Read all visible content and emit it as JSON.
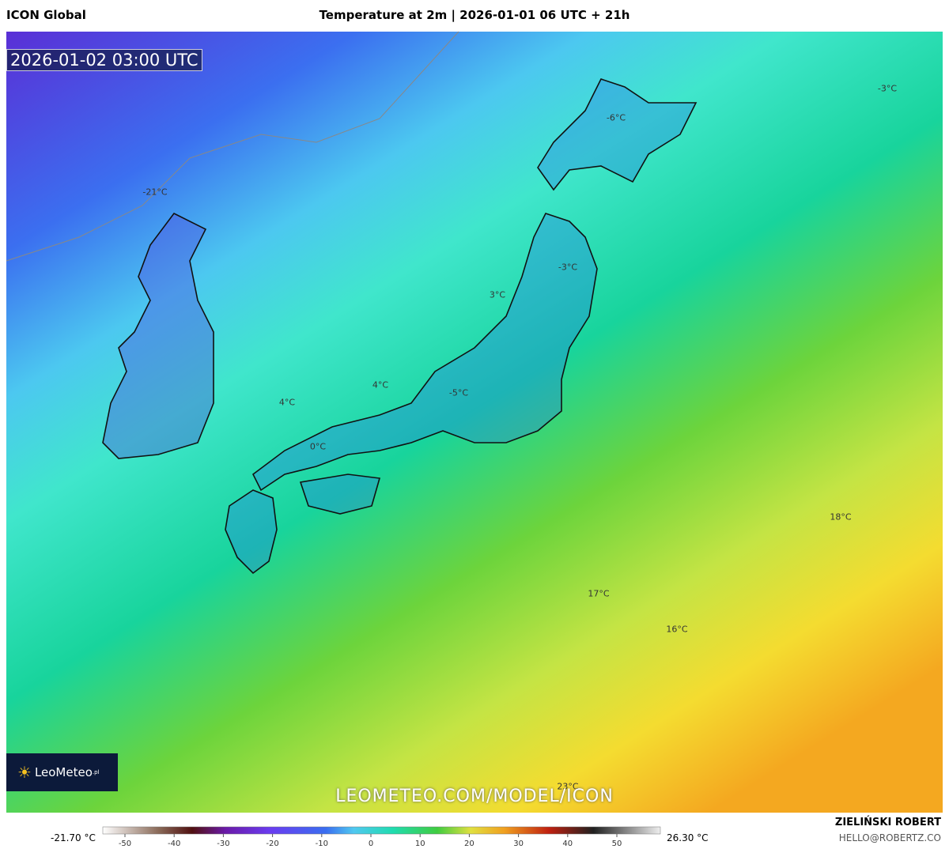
{
  "header": {
    "model": "ICON Global",
    "title": "Temperature at 2m | 2026-01-01 06 UTC + 21h"
  },
  "timestamp": "2026-01-02 03:00 UTC",
  "map_labels": [
    "-3°C",
    "-6°C",
    "-21°C",
    "-3°C",
    "3°C",
    "4°C",
    "4°C",
    "-5°C",
    "0°C",
    "18°C",
    "17°C",
    "16°C",
    "23°C"
  ],
  "logo": {
    "name": "LeoMeteo",
    "suffix": ".pl"
  },
  "watermark": "LEOMETEO.COM/MODEL/ICON",
  "colorbar": {
    "min_label": "-21.70 °C",
    "max_label": "26.30 °C",
    "ticks": [
      -50,
      -40,
      -30,
      -20,
      -10,
      0,
      10,
      20,
      30,
      40,
      50
    ]
  },
  "author": {
    "name": "ZIELIŃSKI ROBERT",
    "email": "HELLO@ROBERTZ.CO"
  }
}
